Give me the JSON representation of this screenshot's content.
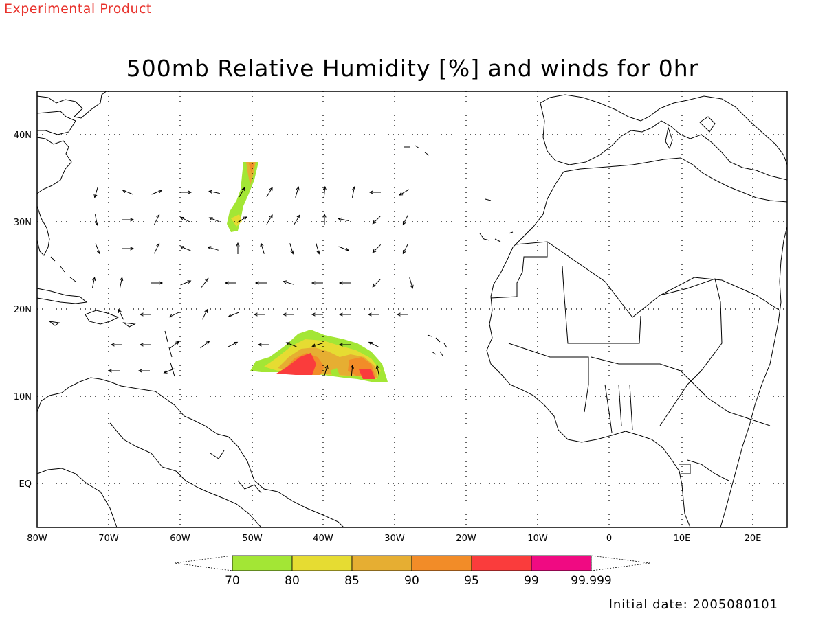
{
  "banner": "Experimental Product",
  "title": "500mb Relative Humidity [%] and winds for 0hr",
  "initial_date": "Initial date: 2005080101",
  "x_ticks": [
    "80W",
    "70W",
    "60W",
    "50W",
    "40W",
    "30W",
    "20W",
    "10W",
    "0",
    "10E",
    "20E"
  ],
  "y_ticks": [
    "40N",
    "30N",
    "20N",
    "10N",
    "EQ"
  ],
  "colorbar": {
    "colors": [
      "#a3e635",
      "#e6dc32",
      "#e6ae32",
      "#f28c28",
      "#fa3c3c",
      "#f00a82"
    ],
    "labels": [
      "70",
      "80",
      "85",
      "90",
      "95",
      "99",
      "99.999"
    ]
  }
}
